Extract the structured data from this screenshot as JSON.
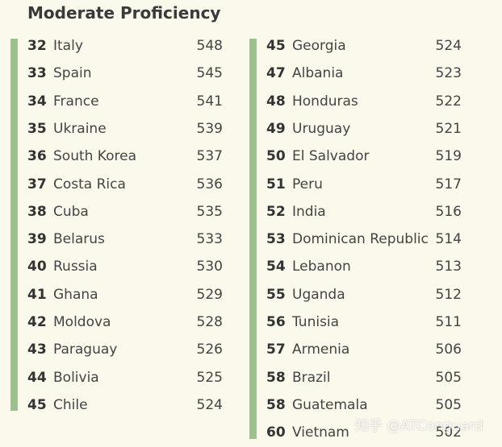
{
  "header": {
    "title": "Moderate Proficiency"
  },
  "columns": [
    {
      "rows": [
        {
          "rank": 32,
          "country": "Italy",
          "score": 548
        },
        {
          "rank": 33,
          "country": "Spain",
          "score": 545
        },
        {
          "rank": 34,
          "country": "France",
          "score": 541
        },
        {
          "rank": 35,
          "country": "Ukraine",
          "score": 539
        },
        {
          "rank": 36,
          "country": "South Korea",
          "score": 537
        },
        {
          "rank": 37,
          "country": "Costa Rica",
          "score": 536
        },
        {
          "rank": 38,
          "country": "Cuba",
          "score": 535
        },
        {
          "rank": 39,
          "country": "Belarus",
          "score": 533
        },
        {
          "rank": 40,
          "country": "Russia",
          "score": 530
        },
        {
          "rank": 41,
          "country": "Ghana",
          "score": 529
        },
        {
          "rank": 42,
          "country": "Moldova",
          "score": 528
        },
        {
          "rank": 43,
          "country": "Paraguay",
          "score": 526
        },
        {
          "rank": 44,
          "country": "Bolivia",
          "score": 525
        },
        {
          "rank": 45,
          "country": "Chile",
          "score": 524
        }
      ]
    },
    {
      "rows": [
        {
          "rank": 45,
          "country": "Georgia",
          "score": 524
        },
        {
          "rank": 47,
          "country": "Albania",
          "score": 523
        },
        {
          "rank": 48,
          "country": "Honduras",
          "score": 522
        },
        {
          "rank": 49,
          "country": "Uruguay",
          "score": 521
        },
        {
          "rank": 50,
          "country": "El Salvador",
          "score": 519
        },
        {
          "rank": 51,
          "country": "Peru",
          "score": 517
        },
        {
          "rank": 52,
          "country": "India",
          "score": 516
        },
        {
          "rank": 53,
          "country": "Dominican Republic",
          "score": 514
        },
        {
          "rank": 54,
          "country": "Lebanon",
          "score": 513
        },
        {
          "rank": 55,
          "country": "Uganda",
          "score": 512
        },
        {
          "rank": 56,
          "country": "Tunisia",
          "score": 511
        },
        {
          "rank": 57,
          "country": "Armenia",
          "score": 506
        },
        {
          "rank": 58,
          "country": "Brazil",
          "score": 505
        },
        {
          "rank": 58,
          "country": "Guatemala",
          "score": 505
        },
        {
          "rank": 60,
          "country": "Vietnam",
          "score": 502
        }
      ]
    }
  ],
  "watermark": "知乎 @ATConguard"
}
